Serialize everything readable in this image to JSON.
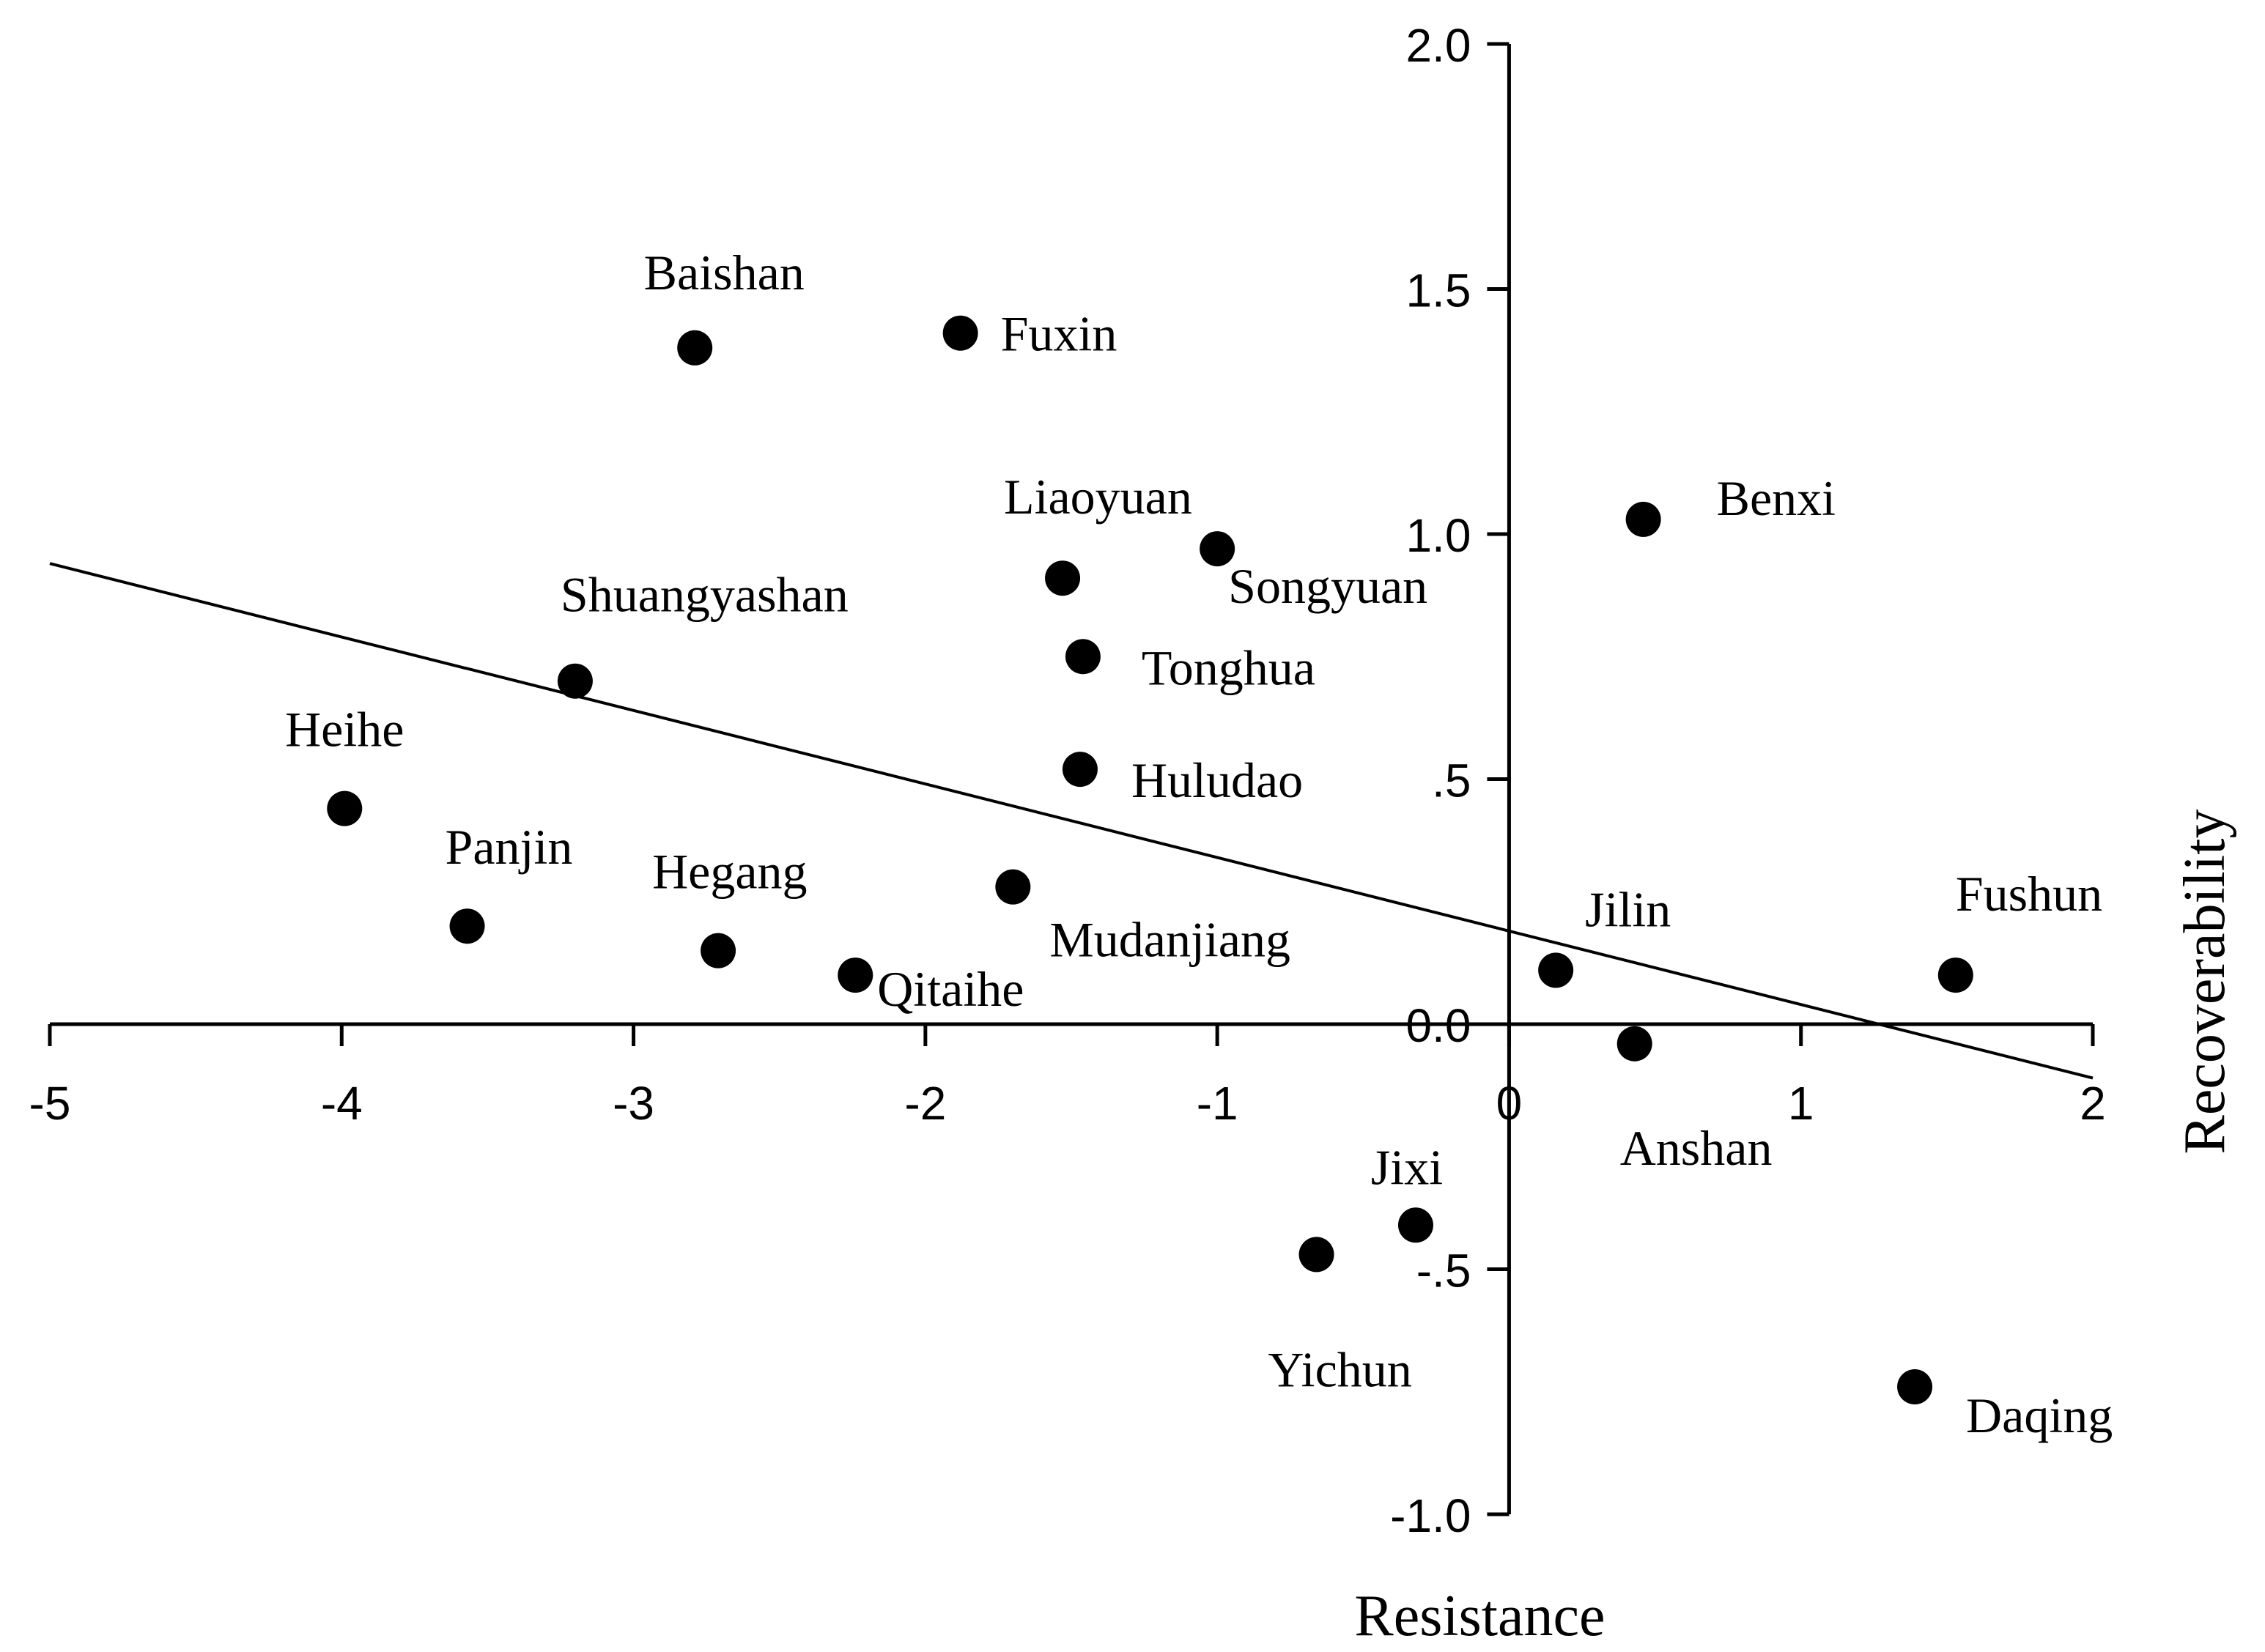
{
  "chart_data": {
    "type": "scatter",
    "title": "",
    "xlabel": "Resistance",
    "ylabel": "Recoverability",
    "xlim": [
      -5,
      2
    ],
    "ylim": [
      -1.0,
      2.0
    ],
    "x_ticks": [
      {
        "value": -5,
        "label": "-5"
      },
      {
        "value": -4,
        "label": "-4"
      },
      {
        "value": -3,
        "label": "-3"
      },
      {
        "value": -2,
        "label": "-2"
      },
      {
        "value": -1,
        "label": "-1"
      },
      {
        "value": 0,
        "label": "0"
      },
      {
        "value": 1,
        "label": "1"
      },
      {
        "value": 2,
        "label": "2"
      }
    ],
    "y_ticks": [
      {
        "value": -1.0,
        "label": "-1.0"
      },
      {
        "value": -0.5,
        "label": "-.5"
      },
      {
        "value": 0.0,
        "label": "0.0"
      },
      {
        "value": 0.5,
        "label": ".5"
      },
      {
        "value": 1.0,
        "label": "1.0"
      },
      {
        "value": 1.5,
        "label": "1.5"
      },
      {
        "value": 2.0,
        "label": "2.0"
      }
    ],
    "points": [
      {
        "name": "Baishan",
        "x": -2.79,
        "y": 1.38,
        "label_pos": "above"
      },
      {
        "name": "Fuxin",
        "x": -1.88,
        "y": 1.41,
        "label_pos": "right"
      },
      {
        "name": "Liaoyuan",
        "x": -1.53,
        "y": 0.91,
        "label_pos": "above-right"
      },
      {
        "name": "Songyuan",
        "x": -1.0,
        "y": 0.97,
        "label_pos": "below-right"
      },
      {
        "name": "Tonghua",
        "x": -1.46,
        "y": 0.75,
        "label_pos": "right"
      },
      {
        "name": "Huludao",
        "x": -1.47,
        "y": 0.52,
        "label_pos": "right"
      },
      {
        "name": "Benxi",
        "x": 0.46,
        "y": 1.03,
        "label_pos": "upper-right"
      },
      {
        "name": "Shuangyashan",
        "x": -3.2,
        "y": 0.7,
        "label_pos": "above-right"
      },
      {
        "name": "Heihe",
        "x": -3.99,
        "y": 0.44,
        "label_pos": "above"
      },
      {
        "name": "Panjin",
        "x": -3.57,
        "y": 0.2,
        "label_pos": "above-right"
      },
      {
        "name": "Hegang",
        "x": -2.71,
        "y": 0.15,
        "label_pos": "above-right"
      },
      {
        "name": "Qitaihe",
        "x": -2.24,
        "y": 0.1,
        "label_pos": "below-right"
      },
      {
        "name": "Mudanjiang",
        "x": -1.7,
        "y": 0.28,
        "label_pos": "below-right"
      },
      {
        "name": "Jilin",
        "x": 0.16,
        "y": 0.11,
        "label_pos": "above-right"
      },
      {
        "name": "Fushun",
        "x": 1.53,
        "y": 0.1,
        "label_pos": "above-right"
      },
      {
        "name": "Anshan",
        "x": 0.43,
        "y": -0.04,
        "label_pos": "below-right"
      },
      {
        "name": "Jixi",
        "x": -0.32,
        "y": -0.41,
        "label_pos": "above"
      },
      {
        "name": "Yichun",
        "x": -0.66,
        "y": -0.47,
        "label_pos": "below"
      },
      {
        "name": "Daqing",
        "x": 1.39,
        "y": -0.74,
        "label_pos": "below-right"
      }
    ],
    "regression_line": {
      "x1": -5,
      "y1": 0.94,
      "x2": 2,
      "y2": -0.11
    },
    "grid": false,
    "legend": "none"
  }
}
